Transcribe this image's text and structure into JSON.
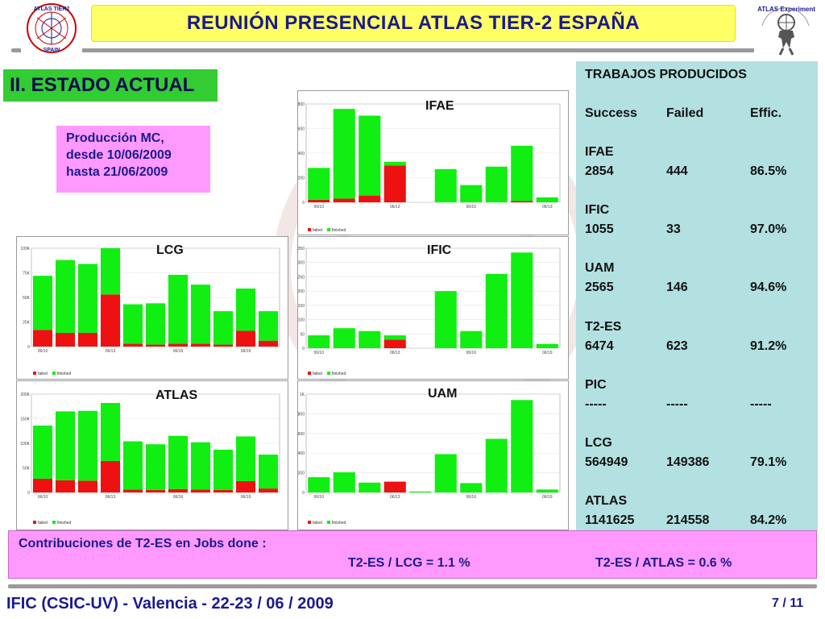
{
  "header": {
    "title": "REUNIÓN  PRESENCIAL  ATLAS  TIER-2  ESPAÑA"
  },
  "logos": {
    "left": "ATLAS TIER2 SPAIN",
    "right": "ATLAS Experiment"
  },
  "section_title": "II. ESTADO ACTUAL",
  "production": {
    "line1": "Producción MC,",
    "line2": "desde  10/06/2009",
    "line3": "hasta  21/06/2009"
  },
  "chart_data": [
    {
      "type": "bar",
      "title": "IFAE",
      "ylim": [
        0,
        800
      ],
      "yticks": [
        "800",
        "600",
        "400",
        "200",
        "0"
      ],
      "xticks": [
        "06/10",
        "06/13",
        "06/16",
        "06/19"
      ],
      "legend": [
        "failed",
        "finished"
      ],
      "series": [
        {
          "name": "failed",
          "values": [
            20,
            30,
            55,
            300,
            0,
            0,
            0,
            0,
            10,
            0
          ]
        },
        {
          "name": "finished",
          "values": [
            260,
            730,
            650,
            30,
            0,
            270,
            140,
            290,
            450,
            40
          ]
        }
      ]
    },
    {
      "type": "bar",
      "title": "LCG",
      "ylim": [
        0,
        100000
      ],
      "yticks": [
        "100K",
        "75K",
        "50K",
        "25K",
        "0"
      ],
      "xticks": [
        "06/10",
        "06/13",
        "06/16",
        "06/19"
      ],
      "legend": [
        "failed",
        "finished"
      ],
      "series": [
        {
          "name": "failed",
          "values": [
            17000,
            14000,
            14000,
            53000,
            3000,
            2000,
            3000,
            3000,
            2000,
            16000,
            6000
          ]
        },
        {
          "name": "finished",
          "values": [
            55000,
            74000,
            70000,
            47000,
            40000,
            42000,
            70000,
            60000,
            34000,
            43000,
            30000
          ]
        }
      ]
    },
    {
      "type": "bar",
      "title": "IFIC",
      "ylim": [
        0,
        350
      ],
      "yticks": [
        "350",
        "300",
        "250",
        "200",
        "150",
        "100",
        "50",
        "0"
      ],
      "xticks": [
        "06/10",
        "06/13",
        "06/16",
        "06/19"
      ],
      "legend": [
        "failed",
        "finished"
      ],
      "series": [
        {
          "name": "failed",
          "values": [
            0,
            0,
            0,
            30,
            0,
            0,
            0,
            0,
            0,
            0
          ]
        },
        {
          "name": "finished",
          "values": [
            45,
            70,
            60,
            15,
            0,
            200,
            60,
            260,
            335,
            15
          ]
        }
      ]
    },
    {
      "type": "bar",
      "title": "ATLAS",
      "ylim": [
        0,
        200000
      ],
      "yticks": [
        "200K",
        "150K",
        "100K",
        "50K",
        "0"
      ],
      "xticks": [
        "06/10",
        "06/13",
        "06/16",
        "06/19"
      ],
      "legend": [
        "failed",
        "finished"
      ],
      "series": [
        {
          "name": "failed",
          "values": [
            28000,
            25000,
            24000,
            64000,
            6000,
            5000,
            7000,
            6000,
            5000,
            23000,
            8000
          ]
        },
        {
          "name": "finished",
          "values": [
            108000,
            140000,
            142000,
            118000,
            98000,
            93000,
            108000,
            96000,
            82000,
            91000,
            69000
          ]
        }
      ]
    },
    {
      "type": "bar",
      "title": "UAM",
      "ylim": [
        0,
        1000
      ],
      "yticks": [
        "1K",
        "800",
        "600",
        "400",
        "200",
        "0"
      ],
      "xticks": [
        "06/10",
        "06/13",
        "06/16",
        "06/19"
      ],
      "legend": [
        "failed",
        "finished"
      ],
      "series": [
        {
          "name": "failed",
          "values": [
            0,
            0,
            0,
            110,
            0,
            0,
            0,
            0,
            0,
            0
          ]
        },
        {
          "name": "finished",
          "values": [
            155,
            205,
            100,
            0,
            10,
            390,
            95,
            545,
            940,
            30
          ]
        }
      ]
    }
  ],
  "jobs": {
    "title": "TRABAJOS  PRODUCIDOS",
    "columns": [
      "Success",
      "Failed",
      "Effic."
    ],
    "sites": [
      {
        "name": "IFAE",
        "success": "2854",
        "failed": "444",
        "effic": "86.5%"
      },
      {
        "name": "IFIC",
        "success": "1055",
        "failed": "33",
        "effic": "97.0%"
      },
      {
        "name": "UAM",
        "success": "2565",
        "failed": "146",
        "effic": "94.6%"
      },
      {
        "name": "T2-ES",
        "success": "6474",
        "failed": "623",
        "effic": "91.2%"
      },
      {
        "name": "PIC",
        "success": "-----",
        "failed": "-----",
        "effic": "-----"
      },
      {
        "name": "LCG",
        "success": "564949",
        "failed": "149386",
        "effic": "79.1%"
      },
      {
        "name": "ATLAS",
        "success": "1141625",
        "failed": "214558",
        "effic": "84.2%"
      }
    ]
  },
  "contributions": {
    "title": "Contribuciones de T2-ES en Jobs done :",
    "lcg": "T2-ES / LCG = 1.1 %",
    "atlas": "T2-ES / ATLAS = 0.6 %"
  },
  "footer": {
    "left": "IFIC (CSIC-UV)  -  Valencia  -  22-23 / 06 / 2009",
    "page": "7 / 11"
  },
  "colors": {
    "header_bg": "#ffff66",
    "title_text": "#1a1a8c",
    "section_bg": "#33cc33",
    "pink_box": "#ff99ff",
    "table_bg": "#b3e0e0",
    "failed": "#ee1111",
    "finished": "#11ee11"
  }
}
